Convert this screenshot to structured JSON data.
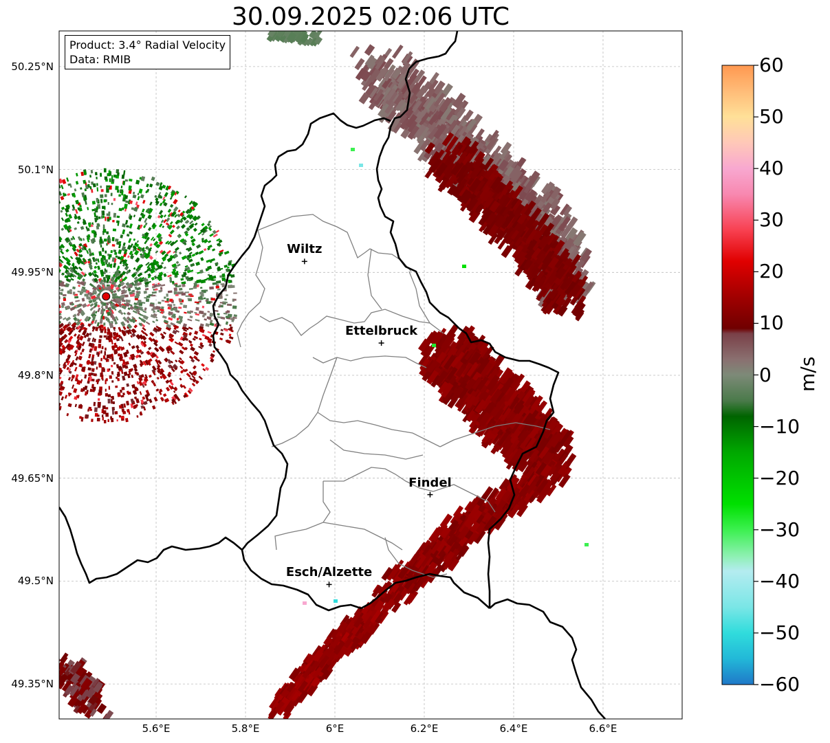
{
  "title": "30.09.2025 02:06 UTC",
  "info_box": {
    "product": "Product: 3.4° Radial Velocity",
    "data": "Data: RMIB"
  },
  "axes": {
    "lat_labels": [
      "50.25°N",
      "50.1°N",
      "49.95°N",
      "49.8°N",
      "49.65°N",
      "49.5°N",
      "49.35°N"
    ],
    "lat_values": [
      50.25,
      50.1,
      49.95,
      49.8,
      49.65,
      49.5,
      49.35
    ],
    "lon_labels": [
      "5.6°E",
      "5.8°E",
      "6°E",
      "6.2°E",
      "6.4°E",
      "6.6°E"
    ],
    "lon_values": [
      5.6,
      5.8,
      6.0,
      6.2,
      6.4,
      6.6
    ],
    "lon_range": [
      5.383,
      6.777
    ],
    "lat_range": [
      49.299,
      50.302
    ],
    "grid": true
  },
  "cities": [
    {
      "name": "Wiltz",
      "lon": 5.932,
      "lat": 49.966
    },
    {
      "name": "Ettelbruck",
      "lon": 6.104,
      "lat": 49.847
    },
    {
      "name": "Findel",
      "lon": 6.213,
      "lat": 49.626
    },
    {
      "name": "Esch/Alzette",
      "lon": 5.987,
      "lat": 49.495
    }
  ],
  "radar_site": {
    "lon": 5.488,
    "lat": 49.915,
    "color": "#e00000"
  },
  "colorbar": {
    "unit": "m/s",
    "min": -60,
    "max": 60,
    "tick_labels": [
      "60",
      "50",
      "40",
      "30",
      "20",
      "10",
      "0",
      "−10",
      "−20",
      "−30",
      "−40",
      "−50",
      "−60"
    ],
    "tick_values": [
      60,
      50,
      40,
      30,
      20,
      10,
      0,
      -10,
      -20,
      -30,
      -40,
      -50,
      -60
    ],
    "stops": [
      {
        "v": -60,
        "color": "#1f78c8"
      },
      {
        "v": -55,
        "color": "#22b8d8"
      },
      {
        "v": -50,
        "color": "#30dcdc"
      },
      {
        "v": -45,
        "color": "#7ae6e6"
      },
      {
        "v": -38,
        "color": "#b4ecf0"
      },
      {
        "v": -35,
        "color": "#8cf0b0"
      },
      {
        "v": -30,
        "color": "#3cf050"
      },
      {
        "v": -25,
        "color": "#00e000"
      },
      {
        "v": -15,
        "color": "#00a800"
      },
      {
        "v": -8,
        "color": "#006400"
      },
      {
        "v": -5,
        "color": "#4a7a4a"
      },
      {
        "v": 0,
        "color": "#7d8a78"
      },
      {
        "v": 3,
        "color": "#8a7070"
      },
      {
        "v": 8,
        "color": "#7a4048"
      },
      {
        "v": 9,
        "color": "#700000"
      },
      {
        "v": 15,
        "color": "#a00000"
      },
      {
        "v": 22,
        "color": "#e00000"
      },
      {
        "v": 28,
        "color": "#f84050"
      },
      {
        "v": 35,
        "color": "#f888b0"
      },
      {
        "v": 40,
        "color": "#f8a8d0"
      },
      {
        "v": 45,
        "color": "#ffc8b8"
      },
      {
        "v": 50,
        "color": "#ffe098"
      },
      {
        "v": 55,
        "color": "#ffbc78"
      },
      {
        "v": 60,
        "color": "#ff9850"
      }
    ]
  },
  "colors": {
    "border": "#000000",
    "canton_lines": "#808080",
    "grid": "#bbbbbb"
  }
}
